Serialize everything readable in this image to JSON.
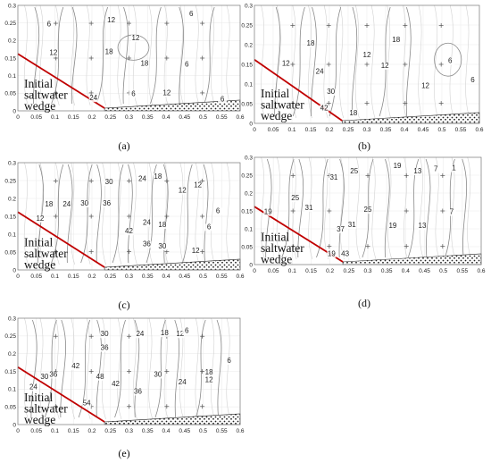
{
  "panels": [
    {
      "id": "a",
      "label": "(a)",
      "wedge_label": [
        "Initial",
        "saltwater",
        "wedge"
      ],
      "x_ticks": [
        "0",
        "0.05",
        "0.1",
        "0.15",
        "0.2",
        "0.25",
        "0.3",
        "0.35",
        "0.4",
        "0.45",
        "0.5",
        "0.55",
        "0.6"
      ],
      "y_ticks": [
        "0.3",
        "0.25",
        "0.2",
        "0.15",
        "0.1",
        "0.05",
        "0"
      ],
      "contour_labels": [
        "6",
        "12",
        "12",
        "18",
        "18",
        "6",
        "12",
        "6",
        "6",
        "12",
        "24",
        "6"
      ]
    },
    {
      "id": "b",
      "label": "(b)",
      "wedge_label": [
        "Initial",
        "saltwater",
        "wedge"
      ],
      "x_ticks": [
        "0",
        "0.05",
        "0.1",
        "0.15",
        "0.2",
        "0.25",
        "0.3",
        "0.35",
        "0.4",
        "0.45",
        "0.5",
        "0.55",
        "0.6"
      ],
      "y_ticks": [
        "0.3",
        "0.25",
        "0.2",
        "0.15",
        "0.1",
        "0.05",
        "0"
      ],
      "contour_labels": [
        "12",
        "18",
        "24",
        "30",
        "42",
        "12",
        "18",
        "12",
        "12",
        "6",
        "6",
        "18"
      ]
    },
    {
      "id": "c",
      "label": "(c)",
      "wedge_label": [
        "Initial",
        "saltwater",
        "wedge"
      ],
      "x_ticks": [
        "0",
        "0.05",
        "0.1",
        "0.15",
        "0.2",
        "0.25",
        "0.3",
        "0.35",
        "0.4",
        "0.45",
        "0.5",
        "0.55",
        "0.6"
      ],
      "y_ticks": [
        "0.3",
        "0.25",
        "0.2",
        "0.15",
        "0.1",
        "0.05",
        "0"
      ],
      "contour_labels": [
        "12",
        "18",
        "24",
        "30",
        "36",
        "42",
        "30",
        "24",
        "18",
        "24",
        "18",
        "12",
        "12",
        "6",
        "6",
        "12",
        "36",
        "30"
      ]
    },
    {
      "id": "d",
      "label": "(d)",
      "wedge_label": [
        "Initial",
        "saltwater",
        "wedge"
      ],
      "x_ticks": [
        "0",
        "0.05",
        "0.1",
        "0.15",
        "0.2",
        "0.25",
        "0.3",
        "0.35",
        "0.4",
        "0.45",
        "0.5",
        "0.55",
        "0.6"
      ],
      "y_ticks": [
        "0.3",
        "0.25",
        "0.2",
        "0.15",
        "0.1",
        "0.05",
        "0"
      ],
      "contour_labels": [
        "19",
        "25",
        "31",
        "31",
        "25",
        "37",
        "31",
        "25",
        "19",
        "13",
        "7",
        "1",
        "19",
        "13",
        "7",
        "43",
        "19"
      ]
    },
    {
      "id": "e",
      "label": "(e)",
      "wedge_label": [
        "Initial",
        "saltwater",
        "wedge"
      ],
      "x_ticks": [
        "0",
        "0.05",
        "0.1",
        "0.15",
        "0.2",
        "0.25",
        "0.3",
        "0.35",
        "0.4",
        "0.45",
        "0.5",
        "0.55",
        "0.6"
      ],
      "y_ticks": [
        "0.3",
        "0.25",
        "0.2",
        "0.15",
        "0.1",
        "0.05",
        "0"
      ],
      "contour_labels": [
        "24",
        "30",
        "36",
        "42",
        "48",
        "30",
        "36",
        "24",
        "18",
        "12",
        "6",
        "42",
        "36",
        "30",
        "24",
        "18",
        "12",
        "6",
        "54"
      ]
    }
  ],
  "colors": {
    "wedge": "#c00000",
    "contours": "#8a8a8a",
    "axis": "#777777"
  }
}
